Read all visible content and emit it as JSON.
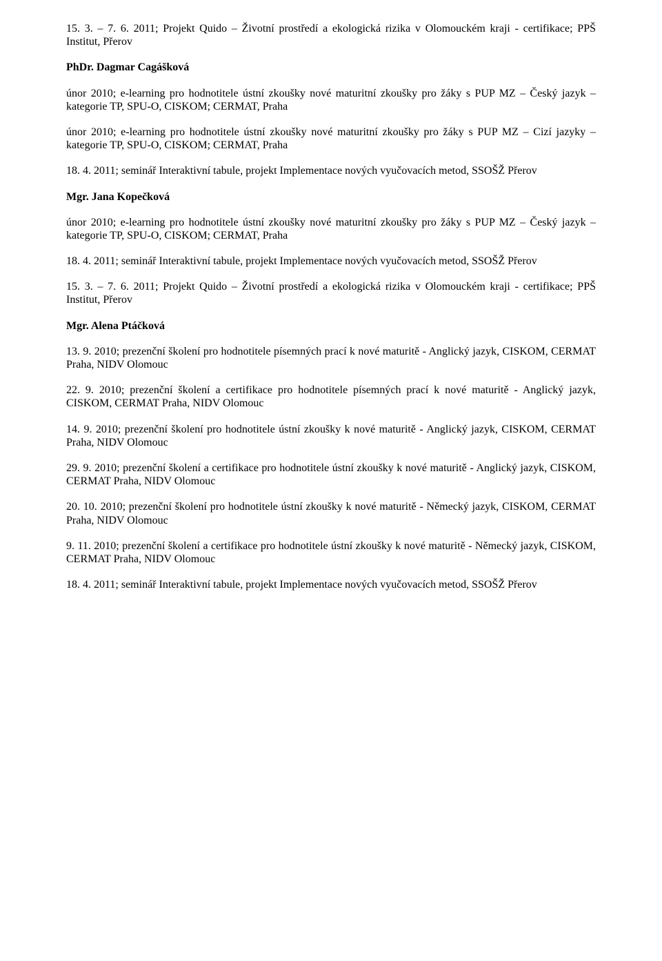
{
  "p1": "15. 3. – 7. 6. 2011; Projekt Quido – Životní prostředí a ekologická rizika v Olomouckém kraji - certifikace; PPŠ Institut, Přerov",
  "h1": "PhDr. Dagmar Cagášková",
  "p2": "únor 2010; e-learning pro hodnotitele ústní zkoušky nové maturitní zkoušky pro žáky s PUP MZ – Český jazyk – kategorie TP, SPU-O, CISKOM; CERMAT, Praha",
  "p3": "únor 2010; e-learning pro hodnotitele ústní zkoušky nové maturitní zkoušky pro žáky s PUP MZ – Cizí jazyky – kategorie TP, SPU-O, CISKOM; CERMAT, Praha",
  "p4": "18. 4. 2011; seminář Interaktivní tabule, projekt Implementace nových vyučovacích metod, SSOŠŽ Přerov",
  "h2": "Mgr. Jana Kopečková",
  "p5": "únor 2010; e-learning pro hodnotitele ústní zkoušky nové maturitní zkoušky pro žáky s PUP MZ – Český jazyk – kategorie TP, SPU-O, CISKOM; CERMAT, Praha",
  "p6": "18. 4. 2011; seminář Interaktivní tabule, projekt Implementace nových vyučovacích metod, SSOŠŽ Přerov",
  "p7": "15. 3. – 7. 6. 2011; Projekt Quido – Životní prostředí a ekologická rizika v Olomouckém kraji - certifikace; PPŠ Institut, Přerov",
  "h3": "Mgr. Alena Ptáčková",
  "p8": "13. 9. 2010; prezenční školení pro hodnotitele písemných prací k nové maturitě -  Anglický jazyk, CISKOM, CERMAT Praha, NIDV Olomouc",
  "p9": "22. 9. 2010; prezenční školení a certifikace pro hodnotitele písemných prací k nové maturitě - Anglický jazyk, CISKOM, CERMAT Praha, NIDV Olomouc",
  "p10": "14. 9. 2010; prezenční školení pro hodnotitele ústní zkoušky k nové maturitě -  Anglický jazyk, CISKOM, CERMAT Praha, NIDV Olomouc",
  "p11": "29. 9. 2010; prezenční školení a certifikace pro hodnotitele ústní zkoušky k nové maturitě - Anglický jazyk, CISKOM, CERMAT Praha, NIDV Olomouc",
  "p12": "20. 10. 2010; prezenční školení pro hodnotitele ústní zkoušky k nové maturitě -  Německý jazyk, CISKOM, CERMAT Praha, NIDV Olomouc",
  "p13": "9. 11. 2010; prezenční školení a certifikace pro hodnotitele ústní zkoušky k nové maturitě - Německý jazyk, CISKOM, CERMAT Praha, NIDV Olomouc",
  "p14": "18. 4. 2011; seminář Interaktivní tabule, projekt Implementace nových vyučovacích metod, SSOŠŽ Přerov"
}
